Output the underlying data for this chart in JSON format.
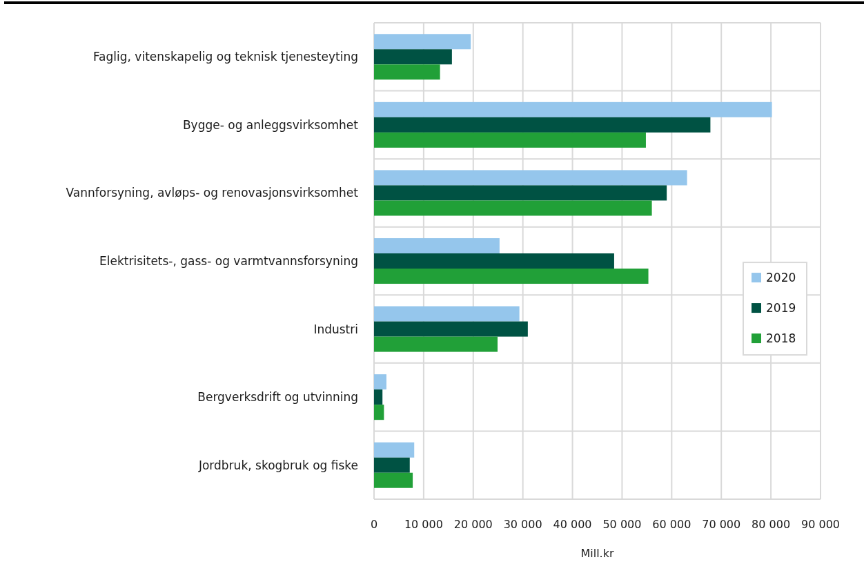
{
  "chart_data": {
    "type": "bar",
    "orientation": "horizontal",
    "categories": [
      "Faglig, vitenskapelig og teknisk tjenesteyting",
      "Bygge- og anleggsvirksomhet",
      "Vannforsyning, avløps- og renovasjonsvirksomhet",
      "Elektrisitets-, gass- og varmtvannsforsyning",
      "Industri",
      "Bergverksdrift og utvinning",
      "Jordbruk, skogbruk og fiske"
    ],
    "series": [
      {
        "name": "2020",
        "color": "#95c6ec",
        "values": [
          19500,
          80200,
          63100,
          25300,
          29300,
          2500,
          8100
        ]
      },
      {
        "name": "2019",
        "color": "#005243",
        "values": [
          15700,
          67800,
          59000,
          48400,
          31000,
          1700,
          7200
        ]
      },
      {
        "name": "2018",
        "color": "#21a038",
        "values": [
          13300,
          54800,
          56000,
          55300,
          24900,
          2000,
          7800
        ]
      }
    ],
    "xlim": [
      0,
      90000
    ],
    "xticks": [
      0,
      {
        "value": 10000,
        "label": "10 000"
      },
      {
        "value": 20000,
        "label": "20 000"
      },
      {
        "value": 30000,
        "label": "30 000"
      },
      {
        "value": 40000,
        "label": "40 000"
      },
      {
        "value": 50000,
        "label": "50 000"
      },
      {
        "value": 60000,
        "label": "60 000"
      },
      {
        "value": 70000,
        "label": "70 000"
      },
      {
        "value": 80000,
        "label": "80 000"
      },
      {
        "value": 90000,
        "label": "90 000"
      }
    ],
    "xlabel": "Mill.kr",
    "grid": true,
    "legend": "right"
  }
}
